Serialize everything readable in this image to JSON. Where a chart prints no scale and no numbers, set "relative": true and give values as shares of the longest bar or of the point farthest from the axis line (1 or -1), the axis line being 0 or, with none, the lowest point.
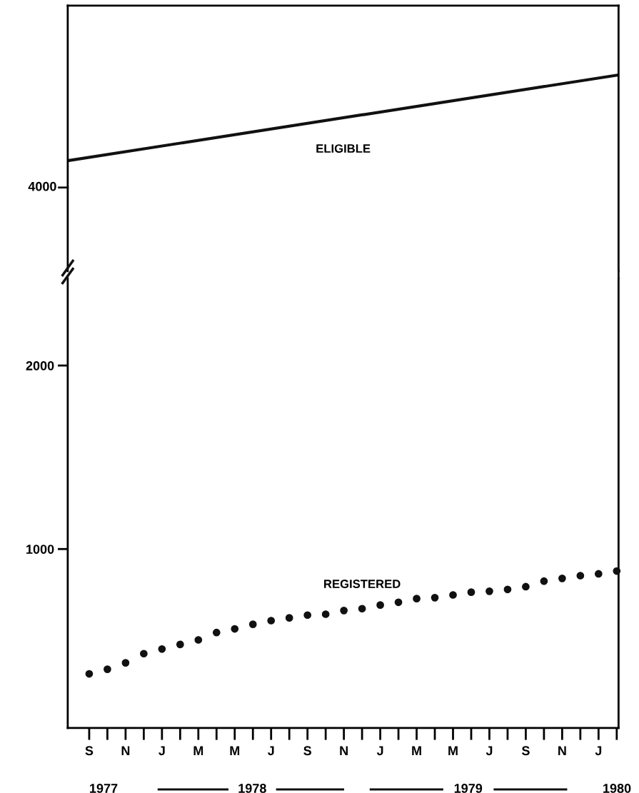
{
  "chart_data": [
    {
      "type": "line",
      "relative": true,
      "categories": [
        null,
        null
      ],
      "grid": false,
      "legend": false,
      "line_style": "solid",
      "marker": "none",
      "annotations": [
        "4000"
      ],
      "series": [
        {
          "name": "ELIGIBLE",
          "color": "#111111",
          "values": [
            0,
            1
          ]
        }
      ]
    },
    {
      "type": "scatter",
      "ylim": [
        25,
        2475
      ],
      "yticks": [
        1000,
        2000
      ],
      "grid": false,
      "legend": false,
      "marker": "circle",
      "categories": [
        "S",
        null,
        "N",
        null,
        "J",
        null,
        "M",
        null,
        "M",
        null,
        "J",
        null,
        "S",
        null,
        "N",
        null,
        "J",
        null,
        "M",
        null,
        "M",
        null,
        "J",
        null,
        "S",
        null,
        "N",
        null,
        "J",
        null
      ],
      "annotations": [
        "1977",
        "1978",
        "1979",
        "1980"
      ],
      "series": [
        {
          "name": "REGISTERED",
          "color": "#111111",
          "values": [
            320,
            345,
            380,
            430,
            455,
            480,
            505,
            545,
            565,
            590,
            610,
            625,
            640,
            645,
            665,
            675,
            695,
            710,
            730,
            735,
            750,
            765,
            770,
            780,
            795,
            825,
            840,
            855,
            865,
            880
          ]
        }
      ]
    }
  ]
}
